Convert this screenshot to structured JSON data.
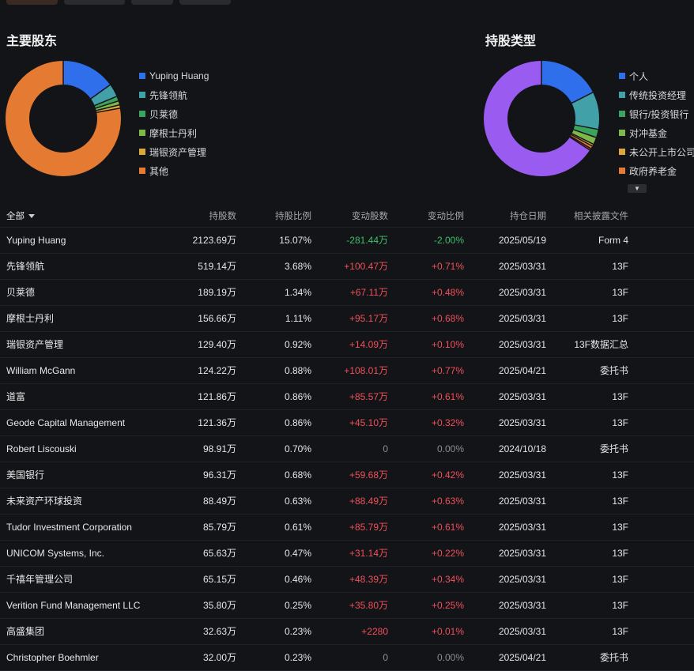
{
  "sections": {
    "holders_title": "主要股东",
    "types_title": "持股类型"
  },
  "holders_chart": {
    "type": "pie",
    "slices": [
      {
        "label": "Yuping Huang",
        "value": 15.07,
        "color": "#2f6fec"
      },
      {
        "label": "先锋领航",
        "value": 3.68,
        "color": "#41a0a8"
      },
      {
        "label": "贝莱德",
        "value": 1.34,
        "color": "#3aa35d"
      },
      {
        "label": "摩根士丹利",
        "value": 1.11,
        "color": "#7fb84a"
      },
      {
        "label": "瑞银资产管理",
        "value": 0.92,
        "color": "#d9a83a"
      },
      {
        "label": "其他",
        "value": 77.88,
        "color": "#e57a33"
      }
    ]
  },
  "types_chart": {
    "type": "pie",
    "slices": [
      {
        "label": "个人",
        "value": 17.5,
        "color": "#2f6fec"
      },
      {
        "label": "传统投资经理",
        "value": 10.5,
        "color": "#41a0a8"
      },
      {
        "label": "银行/投资银行",
        "value": 2.3,
        "color": "#3aa35d"
      },
      {
        "label": "对冲基金",
        "value": 2.0,
        "color": "#7fb84a"
      },
      {
        "label": "未公开上市公司",
        "value": 0.6,
        "color": "#d9a83a"
      },
      {
        "label": "政府养老金",
        "value": 0.8,
        "color": "#e57a33"
      },
      {
        "label": "",
        "value": 0.5,
        "color": "#d8506a"
      },
      {
        "label": "",
        "value": 65.8,
        "color": "#9a5cf0"
      }
    ]
  },
  "table": {
    "filter_label": "全部",
    "headers": {
      "shares": "持股数",
      "ratio": "持股比例",
      "change": "变动股数",
      "change_ratio": "变动比例",
      "date": "持仓日期",
      "doc": "相关披露文件"
    },
    "rows": [
      {
        "name": "Yuping Huang",
        "shares": "2123.69万",
        "ratio": "15.07%",
        "change": "-281.44万",
        "change_ratio": "-2.00%",
        "date": "2025/05/19",
        "doc": "Form 4",
        "dir": "neg"
      },
      {
        "name": "先锋领航",
        "shares": "519.14万",
        "ratio": "3.68%",
        "change": "+100.47万",
        "change_ratio": "+0.71%",
        "date": "2025/03/31",
        "doc": "13F",
        "dir": "pos"
      },
      {
        "name": "贝莱德",
        "shares": "189.19万",
        "ratio": "1.34%",
        "change": "+67.11万",
        "change_ratio": "+0.48%",
        "date": "2025/03/31",
        "doc": "13F",
        "dir": "pos"
      },
      {
        "name": "摩根士丹利",
        "shares": "156.66万",
        "ratio": "1.11%",
        "change": "+95.17万",
        "change_ratio": "+0.68%",
        "date": "2025/03/31",
        "doc": "13F",
        "dir": "pos"
      },
      {
        "name": "瑞银资产管理",
        "shares": "129.40万",
        "ratio": "0.92%",
        "change": "+14.09万",
        "change_ratio": "+0.10%",
        "date": "2025/03/31",
        "doc": "13F数据汇总",
        "dir": "pos"
      },
      {
        "name": "William McGann",
        "shares": "124.22万",
        "ratio": "0.88%",
        "change": "+108.01万",
        "change_ratio": "+0.77%",
        "date": "2025/04/21",
        "doc": "委托书",
        "dir": "pos"
      },
      {
        "name": "道富",
        "shares": "121.86万",
        "ratio": "0.86%",
        "change": "+85.57万",
        "change_ratio": "+0.61%",
        "date": "2025/03/31",
        "doc": "13F",
        "dir": "pos"
      },
      {
        "name": "Geode Capital Management",
        "shares": "121.36万",
        "ratio": "0.86%",
        "change": "+45.10万",
        "change_ratio": "+0.32%",
        "date": "2025/03/31",
        "doc": "13F",
        "dir": "pos"
      },
      {
        "name": "Robert Liscouski",
        "shares": "98.91万",
        "ratio": "0.70%",
        "change": "0",
        "change_ratio": "0.00%",
        "date": "2024/10/18",
        "doc": "委托书",
        "dir": "zero"
      },
      {
        "name": "美国银行",
        "shares": "96.31万",
        "ratio": "0.68%",
        "change": "+59.68万",
        "change_ratio": "+0.42%",
        "date": "2025/03/31",
        "doc": "13F",
        "dir": "pos"
      },
      {
        "name": "未来资产环球投资",
        "shares": "88.49万",
        "ratio": "0.63%",
        "change": "+88.49万",
        "change_ratio": "+0.63%",
        "date": "2025/03/31",
        "doc": "13F",
        "dir": "pos"
      },
      {
        "name": "Tudor Investment Corporation",
        "shares": "85.79万",
        "ratio": "0.61%",
        "change": "+85.79万",
        "change_ratio": "+0.61%",
        "date": "2025/03/31",
        "doc": "13F",
        "dir": "pos"
      },
      {
        "name": "UNICOM Systems, Inc.",
        "shares": "65.63万",
        "ratio": "0.47%",
        "change": "+31.14万",
        "change_ratio": "+0.22%",
        "date": "2025/03/31",
        "doc": "13F",
        "dir": "pos"
      },
      {
        "name": "千禧年管理公司",
        "shares": "65.15万",
        "ratio": "0.46%",
        "change": "+48.39万",
        "change_ratio": "+0.34%",
        "date": "2025/03/31",
        "doc": "13F",
        "dir": "pos"
      },
      {
        "name": "Verition Fund Management LLC",
        "shares": "35.80万",
        "ratio": "0.25%",
        "change": "+35.80万",
        "change_ratio": "+0.25%",
        "date": "2025/03/31",
        "doc": "13F",
        "dir": "pos"
      },
      {
        "name": "高盛集团",
        "shares": "32.63万",
        "ratio": "0.23%",
        "change": "+2280",
        "change_ratio": "+0.01%",
        "date": "2025/03/31",
        "doc": "13F",
        "dir": "pos"
      },
      {
        "name": "Christopher Boehmler",
        "shares": "32.00万",
        "ratio": "0.23%",
        "change": "0",
        "change_ratio": "0.00%",
        "date": "2025/04/21",
        "doc": "委托书",
        "dir": "zero"
      }
    ]
  }
}
